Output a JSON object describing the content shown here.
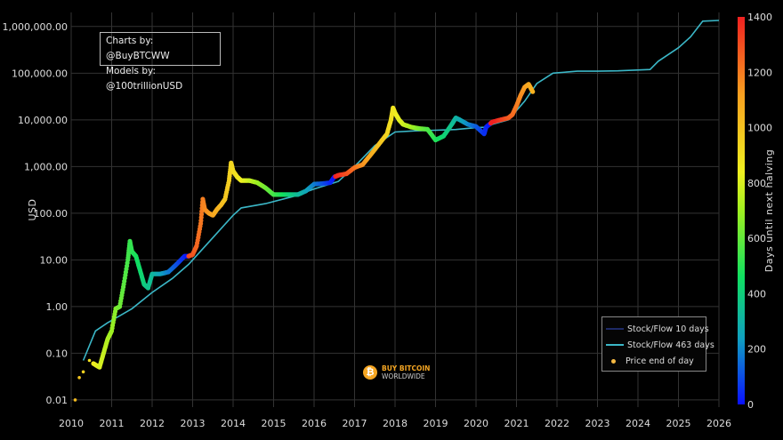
{
  "chart_data": {
    "type": "scatter",
    "title": "",
    "credits": [
      "Charts by: @BuyBTCWW",
      "Models by: @100trillionUSD"
    ],
    "ylabel": "USD",
    "xlabel": "",
    "y_scale": "log",
    "ylim": [
      0.007,
      2000000
    ],
    "xlim": [
      2010,
      2026
    ],
    "x_ticks": [
      "2010",
      "2011",
      "2012",
      "2013",
      "2014",
      "2015",
      "2016",
      "2017",
      "2018",
      "2019",
      "2020",
      "2021",
      "2022",
      "2023",
      "2024",
      "2025",
      "2026"
    ],
    "y_ticks": [
      {
        "value": 0.01,
        "label": "0.01"
      },
      {
        "value": 0.1,
        "label": "0.10"
      },
      {
        "value": 1,
        "label": "1.00"
      },
      {
        "value": 10,
        "label": "10.00"
      },
      {
        "value": 100,
        "label": "100.00"
      },
      {
        "value": 1000,
        "label": "1,000.00"
      },
      {
        "value": 10000,
        "label": "10,000.00"
      },
      {
        "value": 100000,
        "label": "100,000.00"
      },
      {
        "value": 1000000,
        "label": "1,000,000.00"
      }
    ],
    "colorbar": {
      "label": "Days until next halving",
      "min": 0,
      "max": 1400,
      "ticks": [
        "0",
        "200",
        "400",
        "600",
        "800",
        "1000",
        "1200",
        "1400"
      ],
      "colors": [
        "#0a10ff",
        "#10a0c0",
        "#10e060",
        "#a0f020",
        "#f0f020",
        "#f8a020",
        "#f02020"
      ]
    },
    "legend": {
      "position": "bottom-right",
      "entries": [
        "Stock/Flow 10 days",
        "Stock/Flow 463 days",
        "Price end of day"
      ]
    },
    "legend_colors": {
      "sf10": "#1e2a66",
      "sf463": "#3bb7c7",
      "price": "#f5b942"
    },
    "series": [
      {
        "name": "Stock/Flow 463 days",
        "x": [
          2010.3,
          2010.6,
          2010.9,
          2011.5,
          2012.0,
          2012.5,
          2012.9,
          2013.5,
          2014.0,
          2014.2,
          2014.8,
          2015.5,
          2016.0,
          2016.5,
          2016.6,
          2017.0,
          2017.5,
          2018.0,
          2018.5,
          2019.0,
          2019.5,
          2020.0,
          2020.3,
          2020.4,
          2020.8,
          2021.2,
          2021.5,
          2021.9,
          2022.5,
          2023.0,
          2023.5,
          2024.3,
          2024.5,
          2025.0,
          2025.3,
          2025.6,
          2026.0
        ],
        "y": [
          0.07,
          0.3,
          0.45,
          0.9,
          2.0,
          4.0,
          8.0,
          30,
          90,
          130,
          160,
          230,
          330,
          450,
          480,
          1000,
          2800,
          5500,
          5800,
          6000,
          6200,
          6800,
          7000,
          8000,
          10000,
          25000,
          60000,
          100000,
          110000,
          110000,
          112000,
          120000,
          180000,
          350000,
          600000,
          1300000,
          1350000
        ]
      },
      {
        "name": "Price end of day",
        "x": [
          2010.1,
          2010.2,
          2010.3,
          2010.45,
          2010.55,
          2010.7,
          2010.8,
          2010.9,
          2011.0,
          2011.1,
          2011.2,
          2011.3,
          2011.4,
          2011.45,
          2011.5,
          2011.6,
          2011.7,
          2011.8,
          2011.9,
          2012.0,
          2012.2,
          2012.4,
          2012.6,
          2012.8,
          2012.9,
          2013.0,
          2013.1,
          2013.2,
          2013.25,
          2013.3,
          2013.4,
          2013.5,
          2013.6,
          2013.7,
          2013.8,
          2013.9,
          2013.95,
          2014.0,
          2014.1,
          2014.2,
          2014.4,
          2014.6,
          2014.8,
          2015.0,
          2015.2,
          2015.4,
          2015.6,
          2015.8,
          2016.0,
          2016.2,
          2016.4,
          2016.5,
          2016.6,
          2016.8,
          2017.0,
          2017.2,
          2017.4,
          2017.6,
          2017.8,
          2017.9,
          2017.95,
          2018.0,
          2018.1,
          2018.2,
          2018.4,
          2018.6,
          2018.8,
          2019.0,
          2019.2,
          2019.4,
          2019.5,
          2019.6,
          2019.8,
          2020.0,
          2020.2,
          2020.25,
          2020.4,
          2020.6,
          2020.8,
          2020.9,
          2021.0,
          2021.1,
          2021.2,
          2021.3,
          2021.4
        ],
        "y": [
          0.01,
          0.03,
          0.04,
          0.07,
          0.06,
          0.05,
          0.1,
          0.2,
          0.3,
          0.9,
          1.0,
          3.0,
          10,
          25,
          15,
          12,
          6,
          3,
          2.5,
          5.0,
          5.0,
          5.5,
          8.0,
          12,
          12,
          13,
          20,
          60,
          200,
          120,
          100,
          90,
          120,
          150,
          200,
          500,
          1200,
          800,
          600,
          500,
          500,
          450,
          350,
          250,
          250,
          250,
          250,
          300,
          420,
          430,
          450,
          600,
          650,
          700,
          950,
          1100,
          1800,
          3000,
          5000,
          10000,
          18000,
          14000,
          10000,
          8000,
          7000,
          6500,
          6300,
          3700,
          4500,
          8000,
          11000,
          10000,
          8000,
          7200,
          5000,
          7000,
          9000,
          10000,
          11000,
          13000,
          20000,
          33000,
          50000,
          58000,
          40000
        ]
      }
    ]
  }
}
